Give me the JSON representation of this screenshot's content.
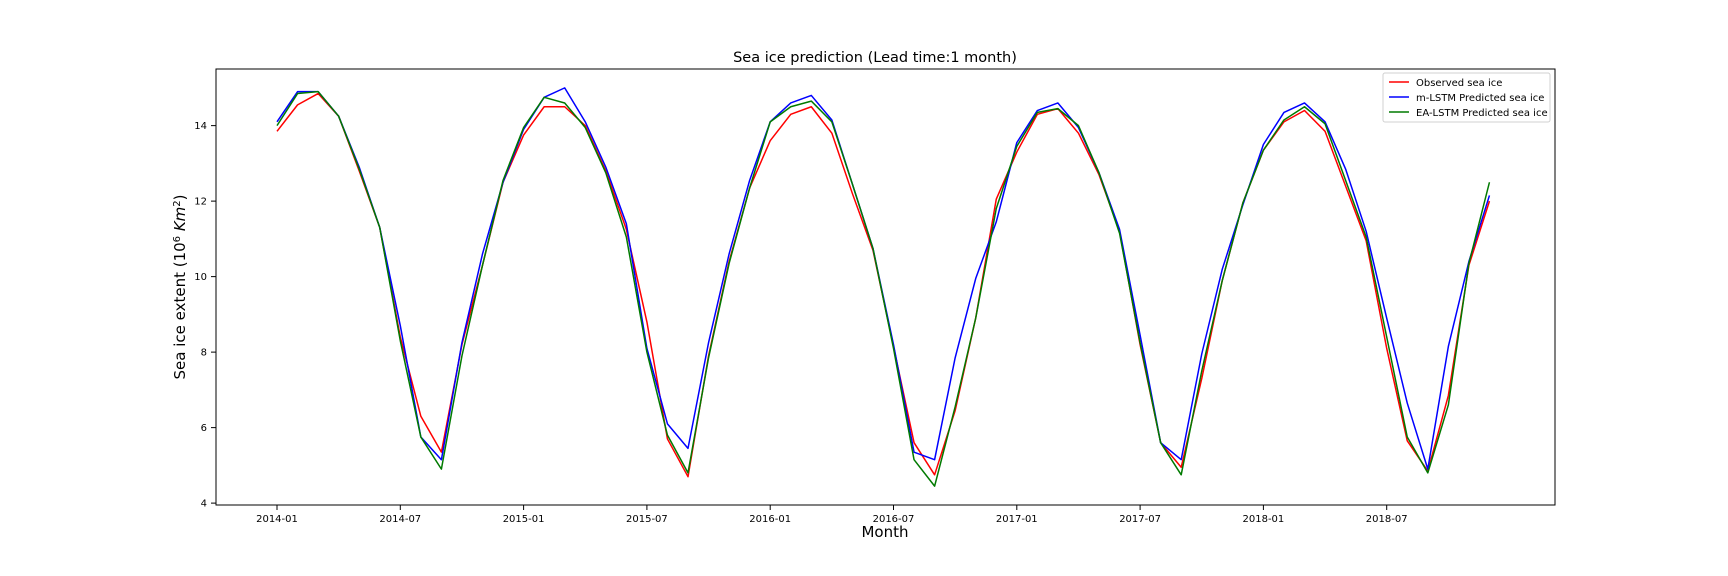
{
  "chart_data": {
    "type": "line",
    "title": "Sea ice prediction (Lead time:1 month)",
    "xlabel": "Month",
    "ylabel": {
      "prefix": "Sea ice extent (10",
      "exp": "6",
      "mid": " Km",
      "exp2": "2",
      "suffix": ")"
    },
    "x": [
      "2014-01",
      "2014-02",
      "2014-03",
      "2014-04",
      "2014-05",
      "2014-06",
      "2014-07",
      "2014-08",
      "2014-09",
      "2014-10",
      "2014-11",
      "2014-12",
      "2015-01",
      "2015-02",
      "2015-03",
      "2015-04",
      "2015-05",
      "2015-06",
      "2015-07",
      "2015-08",
      "2015-09",
      "2015-10",
      "2015-11",
      "2015-12",
      "2016-01",
      "2016-02",
      "2016-03",
      "2016-04",
      "2016-05",
      "2016-06",
      "2016-07",
      "2016-08",
      "2016-09",
      "2016-10",
      "2016-11",
      "2016-12",
      "2017-01",
      "2017-02",
      "2017-03",
      "2017-04",
      "2017-05",
      "2017-06",
      "2017-07",
      "2017-08",
      "2017-09",
      "2017-10",
      "2017-11",
      "2017-12",
      "2018-01",
      "2018-02",
      "2018-03",
      "2018-04",
      "2018-05",
      "2018-06",
      "2018-07",
      "2018-08",
      "2018-09",
      "2018-10",
      "2018-11",
      "2018-12"
    ],
    "x_ticks": [
      "2014-01",
      "2014-07",
      "2015-01",
      "2015-07",
      "2016-01",
      "2016-07",
      "2017-01",
      "2017-07",
      "2018-01",
      "2018-07"
    ],
    "ylim": [
      3.95,
      15.5
    ],
    "y_ticks": [
      4,
      6,
      8,
      10,
      12,
      14
    ],
    "legend_position": "top-right",
    "series": [
      {
        "name": "Observed sea ice",
        "color": "#ff0000",
        "values": [
          13.85,
          14.55,
          14.85,
          14.25,
          12.8,
          11.3,
          8.4,
          6.3,
          5.35,
          8.2,
          10.3,
          12.5,
          13.75,
          14.5,
          14.5,
          14.0,
          12.8,
          11.25,
          8.8,
          5.7,
          4.7,
          7.9,
          10.4,
          12.35,
          13.6,
          14.3,
          14.5,
          13.8,
          12.2,
          10.7,
          8.15,
          5.6,
          4.75,
          6.45,
          8.9,
          12.05,
          13.3,
          14.3,
          14.45,
          13.8,
          12.7,
          11.2,
          8.2,
          5.6,
          4.95,
          7.3,
          9.9,
          11.95,
          13.35,
          14.1,
          14.4,
          13.85,
          12.4,
          10.95,
          8.1,
          5.65,
          4.85,
          6.85,
          10.3,
          12.0
        ]
      },
      {
        "name": "m-LSTM Predicted sea ice",
        "color": "#0000ff",
        "values": [
          14.1,
          14.9,
          14.9,
          14.25,
          12.9,
          11.3,
          8.7,
          5.75,
          5.15,
          8.25,
          10.6,
          12.5,
          13.9,
          14.75,
          15.0,
          14.1,
          12.9,
          11.4,
          8.1,
          6.1,
          5.45,
          8.25,
          10.6,
          12.55,
          14.1,
          14.6,
          14.8,
          14.15,
          12.45,
          10.75,
          8.2,
          5.35,
          5.15,
          7.85,
          9.95,
          11.45,
          13.55,
          14.4,
          14.6,
          13.95,
          12.75,
          11.25,
          8.45,
          5.6,
          5.15,
          7.95,
          10.2,
          11.9,
          13.5,
          14.35,
          14.6,
          14.1,
          12.85,
          11.2,
          8.9,
          6.65,
          4.9,
          8.15,
          10.4,
          12.15
        ]
      },
      {
        "name": "EA-LSTM Predicted sea ice",
        "color": "#007a00",
        "values": [
          14.0,
          14.85,
          14.9,
          14.25,
          12.85,
          11.3,
          8.3,
          5.75,
          4.9,
          7.9,
          10.3,
          12.55,
          13.95,
          14.75,
          14.6,
          13.95,
          12.75,
          11.05,
          8.0,
          5.8,
          4.8,
          7.85,
          10.35,
          12.35,
          14.1,
          14.5,
          14.65,
          14.1,
          12.45,
          10.75,
          8.1,
          5.15,
          4.45,
          6.55,
          8.9,
          11.8,
          13.45,
          14.35,
          14.45,
          14.0,
          12.75,
          11.15,
          8.25,
          5.6,
          4.75,
          7.5,
          9.9,
          11.95,
          13.35,
          14.15,
          14.5,
          14.05,
          12.55,
          11.05,
          8.4,
          5.75,
          4.8,
          6.6,
          10.35,
          12.5
        ]
      }
    ]
  }
}
